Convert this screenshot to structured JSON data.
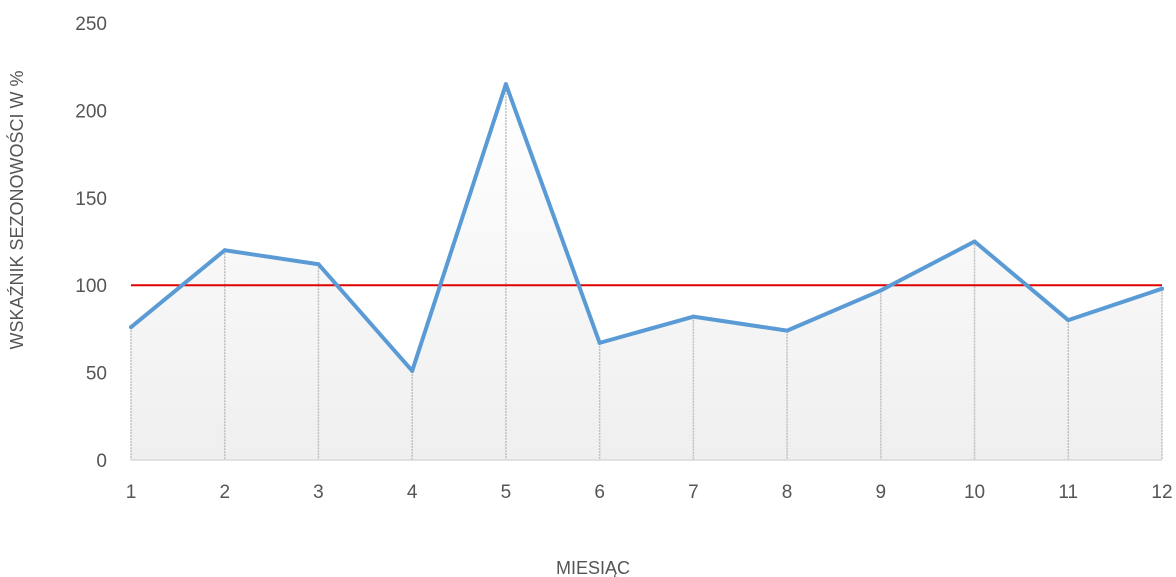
{
  "chart_data": {
    "type": "line",
    "title": "",
    "xlabel": "MIESIĄC",
    "ylabel": "WSKAŹNIK   SEZONOWOŚCI W %",
    "x": [
      1,
      2,
      3,
      4,
      5,
      6,
      7,
      8,
      9,
      10,
      11,
      12
    ],
    "series": [
      {
        "values": [
          76,
          120,
          112,
          51,
          215,
          67,
          82,
          74,
          97,
          125,
          80,
          98
        ]
      }
    ],
    "reference_line": {
      "y": 100,
      "color": "#e00000"
    },
    "ylim": [
      0,
      250
    ],
    "yticks": [
      0,
      50,
      100,
      150,
      200,
      250
    ],
    "xticks": [
      "1",
      "2",
      "3",
      "4",
      "5",
      "6",
      "7",
      "8",
      "9",
      "10",
      "11",
      "12"
    ],
    "drop_lines": true,
    "area_fill": "gradient white to light gray",
    "legend": "none",
    "colors": {
      "line": "#5b9bd5",
      "reference": "#e00000",
      "drop_line": "#bfbfbf",
      "axis": "#d9d9d9"
    }
  }
}
